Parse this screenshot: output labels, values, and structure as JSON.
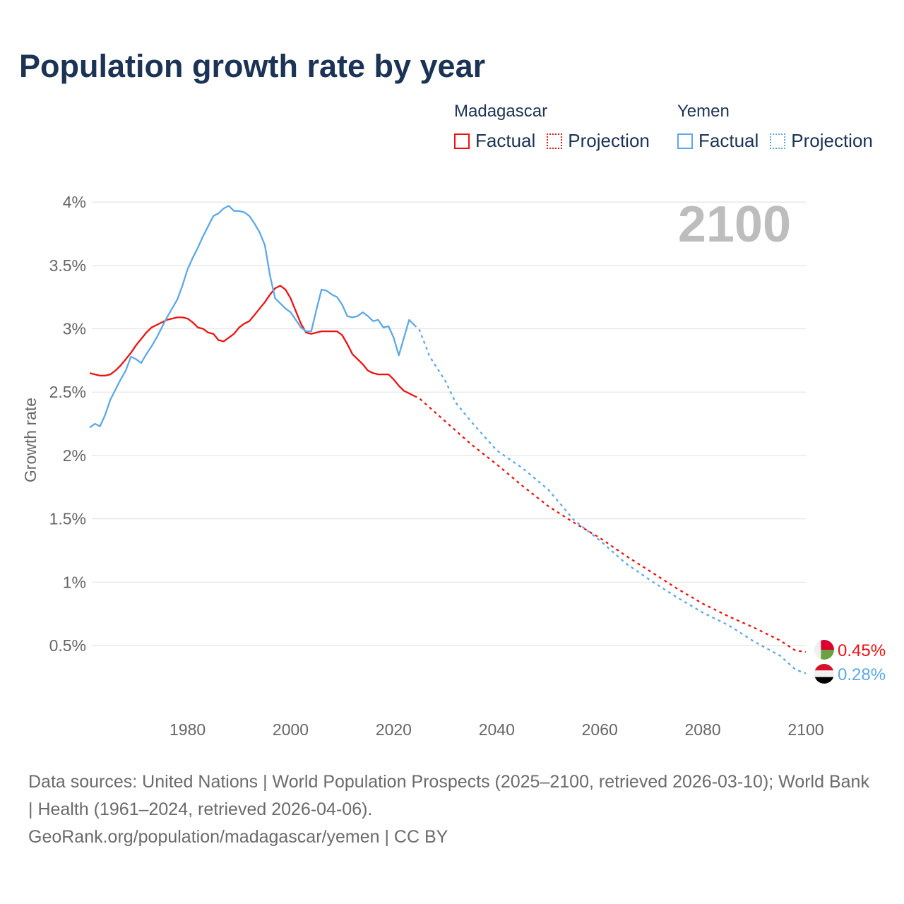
{
  "title": "Population growth rate by year",
  "legend": {
    "groups": [
      {
        "name": "Madagascar",
        "factual": "Factual",
        "projection": "Projection",
        "color": "#ee1111"
      },
      {
        "name": "Yemen",
        "factual": "Factual",
        "projection": "Projection",
        "color": "#5ca8ea"
      }
    ]
  },
  "year_display": "2100",
  "footer": {
    "sources": "Data sources: United Nations | World Population Prospects (2025–2100, retrieved 2026-03-10); World Bank | Health (1961–2024, retrieved 2026-04-06).",
    "link": "GeoRank.org/population/madagascar/yemen | CC BY"
  },
  "chart_data": {
    "type": "line",
    "title": "Population growth rate by year",
    "xlabel": "",
    "ylabel": "Growth rate",
    "xlim": [
      1961,
      2100
    ],
    "ylim": [
      0,
      4
    ],
    "yticks": [
      {
        "v": 0.5,
        "label": "0.5%"
      },
      {
        "v": 1,
        "label": "1%"
      },
      {
        "v": 1.5,
        "label": "1.5%"
      },
      {
        "v": 2,
        "label": "2%"
      },
      {
        "v": 2.5,
        "label": "2.5%"
      },
      {
        "v": 3,
        "label": "3%"
      },
      {
        "v": 3.5,
        "label": "3.5%"
      },
      {
        "v": 4,
        "label": "4%"
      }
    ],
    "xticks": [
      {
        "v": 1980,
        "label": "1980"
      },
      {
        "v": 2000,
        "label": "2000"
      },
      {
        "v": 2020,
        "label": "2020"
      },
      {
        "v": 2040,
        "label": "2040"
      },
      {
        "v": 2060,
        "label": "2060"
      },
      {
        "v": 2080,
        "label": "2080"
      },
      {
        "v": 2100,
        "label": "2100"
      }
    ],
    "grid": true,
    "series": [
      {
        "name": "Madagascar",
        "kind": "factual",
        "color": "#ee1111",
        "points": [
          [
            1961,
            2.65
          ],
          [
            1962,
            2.64
          ],
          [
            1963,
            2.63
          ],
          [
            1964,
            2.63
          ],
          [
            1965,
            2.64
          ],
          [
            1966,
            2.67
          ],
          [
            1967,
            2.71
          ],
          [
            1968,
            2.76
          ],
          [
            1969,
            2.81
          ],
          [
            1970,
            2.87
          ],
          [
            1971,
            2.92
          ],
          [
            1972,
            2.97
          ],
          [
            1973,
            3.01
          ],
          [
            1974,
            3.03
          ],
          [
            1975,
            3.05
          ],
          [
            1976,
            3.07
          ],
          [
            1977,
            3.08
          ],
          [
            1978,
            3.09
          ],
          [
            1979,
            3.09
          ],
          [
            1980,
            3.08
          ],
          [
            1981,
            3.05
          ],
          [
            1982,
            3.01
          ],
          [
            1983,
            3.0
          ],
          [
            1984,
            2.97
          ],
          [
            1985,
            2.96
          ],
          [
            1986,
            2.91
          ],
          [
            1987,
            2.9
          ],
          [
            1988,
            2.93
          ],
          [
            1989,
            2.96
          ],
          [
            1990,
            3.01
          ],
          [
            1991,
            3.04
          ],
          [
            1992,
            3.06
          ],
          [
            1993,
            3.11
          ],
          [
            1994,
            3.16
          ],
          [
            1995,
            3.21
          ],
          [
            1996,
            3.27
          ],
          [
            1997,
            3.32
          ],
          [
            1998,
            3.34
          ],
          [
            1999,
            3.31
          ],
          [
            2000,
            3.24
          ],
          [
            2001,
            3.14
          ],
          [
            2002,
            3.04
          ],
          [
            2003,
            2.97
          ],
          [
            2004,
            2.96
          ],
          [
            2005,
            2.97
          ],
          [
            2006,
            2.98
          ],
          [
            2007,
            2.98
          ],
          [
            2008,
            2.98
          ],
          [
            2009,
            2.98
          ],
          [
            2010,
            2.95
          ],
          [
            2011,
            2.88
          ],
          [
            2012,
            2.8
          ],
          [
            2013,
            2.76
          ],
          [
            2014,
            2.72
          ],
          [
            2015,
            2.67
          ],
          [
            2016,
            2.65
          ],
          [
            2017,
            2.64
          ],
          [
            2018,
            2.64
          ],
          [
            2019,
            2.64
          ],
          [
            2020,
            2.6
          ],
          [
            2021,
            2.55
          ],
          [
            2022,
            2.51
          ],
          [
            2023,
            2.49
          ],
          [
            2024,
            2.47
          ]
        ]
      },
      {
        "name": "Madagascar",
        "kind": "projection",
        "color": "#ee1111",
        "points": [
          [
            2024,
            2.47
          ],
          [
            2025,
            2.45
          ],
          [
            2030,
            2.27
          ],
          [
            2035,
            2.09
          ],
          [
            2040,
            1.93
          ],
          [
            2045,
            1.76
          ],
          [
            2050,
            1.6
          ],
          [
            2055,
            1.47
          ],
          [
            2060,
            1.35
          ],
          [
            2065,
            1.21
          ],
          [
            2070,
            1.08
          ],
          [
            2075,
            0.95
          ],
          [
            2080,
            0.83
          ],
          [
            2085,
            0.73
          ],
          [
            2090,
            0.64
          ],
          [
            2095,
            0.54
          ],
          [
            2098,
            0.46
          ],
          [
            2100,
            0.45
          ]
        ]
      },
      {
        "name": "Yemen",
        "kind": "factual",
        "color": "#5ca8ea",
        "points": [
          [
            1961,
            2.22
          ],
          [
            1962,
            2.25
          ],
          [
            1963,
            2.23
          ],
          [
            1964,
            2.32
          ],
          [
            1965,
            2.44
          ],
          [
            1966,
            2.52
          ],
          [
            1967,
            2.6
          ],
          [
            1968,
            2.67
          ],
          [
            1969,
            2.78
          ],
          [
            1970,
            2.76
          ],
          [
            1971,
            2.73
          ],
          [
            1972,
            2.8
          ],
          [
            1973,
            2.86
          ],
          [
            1974,
            2.93
          ],
          [
            1975,
            3.01
          ],
          [
            1976,
            3.09
          ],
          [
            1977,
            3.16
          ],
          [
            1978,
            3.23
          ],
          [
            1979,
            3.34
          ],
          [
            1980,
            3.47
          ],
          [
            1981,
            3.56
          ],
          [
            1982,
            3.64
          ],
          [
            1983,
            3.73
          ],
          [
            1984,
            3.81
          ],
          [
            1985,
            3.89
          ],
          [
            1986,
            3.91
          ],
          [
            1987,
            3.95
          ],
          [
            1988,
            3.97
          ],
          [
            1989,
            3.93
          ],
          [
            1990,
            3.93
          ],
          [
            1991,
            3.92
          ],
          [
            1992,
            3.89
          ],
          [
            1993,
            3.83
          ],
          [
            1994,
            3.76
          ],
          [
            1995,
            3.66
          ],
          [
            1996,
            3.42
          ],
          [
            1997,
            3.24
          ],
          [
            1998,
            3.2
          ],
          [
            1999,
            3.16
          ],
          [
            2000,
            3.13
          ],
          [
            2001,
            3.07
          ],
          [
            2002,
            3.01
          ],
          [
            2003,
            2.98
          ],
          [
            2004,
            2.98
          ],
          [
            2005,
            3.15
          ],
          [
            2006,
            3.31
          ],
          [
            2007,
            3.3
          ],
          [
            2008,
            3.27
          ],
          [
            2009,
            3.25
          ],
          [
            2010,
            3.19
          ],
          [
            2011,
            3.1
          ],
          [
            2012,
            3.09
          ],
          [
            2013,
            3.1
          ],
          [
            2014,
            3.13
          ],
          [
            2015,
            3.1
          ],
          [
            2016,
            3.06
          ],
          [
            2017,
            3.07
          ],
          [
            2018,
            3.01
          ],
          [
            2019,
            3.02
          ],
          [
            2020,
            2.93
          ],
          [
            2021,
            2.79
          ],
          [
            2022,
            2.93
          ],
          [
            2023,
            3.07
          ],
          [
            2024,
            3.03
          ]
        ]
      },
      {
        "name": "Yemen",
        "kind": "projection",
        "color": "#5ca8ea",
        "points": [
          [
            2024,
            3.03
          ],
          [
            2025,
            2.99
          ],
          [
            2027,
            2.78
          ],
          [
            2030,
            2.59
          ],
          [
            2032,
            2.42
          ],
          [
            2035,
            2.27
          ],
          [
            2040,
            2.04
          ],
          [
            2045,
            1.9
          ],
          [
            2050,
            1.73
          ],
          [
            2055,
            1.49
          ],
          [
            2060,
            1.33
          ],
          [
            2065,
            1.15
          ],
          [
            2070,
            1.01
          ],
          [
            2075,
            0.88
          ],
          [
            2080,
            0.76
          ],
          [
            2085,
            0.66
          ],
          [
            2090,
            0.53
          ],
          [
            2095,
            0.42
          ],
          [
            2098,
            0.31
          ],
          [
            2100,
            0.28
          ]
        ]
      }
    ],
    "end_labels": [
      {
        "name": "Madagascar",
        "label": "0.45%",
        "value": 0.45,
        "color": "#ee1111"
      },
      {
        "name": "Yemen",
        "label": "0.28%",
        "value": 0.28,
        "color": "#5ca8ea"
      }
    ]
  }
}
